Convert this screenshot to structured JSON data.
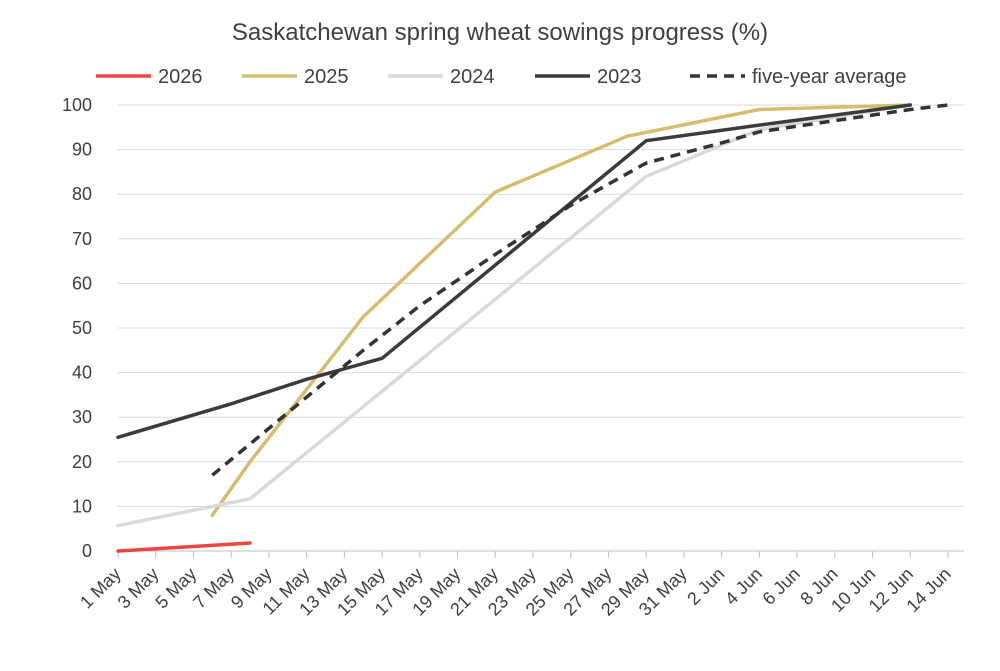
{
  "chart_data": {
    "type": "line",
    "title": "Saskatchewan spring wheat sowings progress (%)",
    "xlabel": "",
    "ylabel": "",
    "ylim": [
      0,
      100
    ],
    "yticks": [
      0,
      10,
      20,
      30,
      40,
      50,
      60,
      70,
      80,
      90,
      100
    ],
    "xticks": [
      "1 May",
      "3 May",
      "5 May",
      "7 May",
      "9 May",
      "11 May",
      "13 May",
      "15 May",
      "17 May",
      "19 May",
      "21 May",
      "23 May",
      "25 May",
      "27 May",
      "29 May",
      "31 May",
      "2 Jun",
      "4 Jun",
      "6 Jun",
      "8 Jun",
      "10 Jun",
      "12 Jun",
      "14 Jun"
    ],
    "grid": true,
    "legend_position": "top",
    "series": [
      {
        "name": "2026",
        "color": "#e8473f",
        "dash": false,
        "points": [
          [
            "1 May",
            0
          ],
          [
            "5 May",
            1
          ],
          [
            "8 May",
            1.8
          ]
        ]
      },
      {
        "name": "2025",
        "color": "#d6bd6e",
        "dash": false,
        "points": [
          [
            "6 May",
            8
          ],
          [
            "8 May",
            20
          ],
          [
            "14 May",
            52.5
          ],
          [
            "21 May",
            80.5
          ],
          [
            "28 May",
            93
          ],
          [
            "4 Jun",
            99
          ],
          [
            "12 Jun",
            100
          ]
        ]
      },
      {
        "name": "2024",
        "color": "#d9d9d9",
        "dash": false,
        "points": [
          [
            "1 May",
            5.7
          ],
          [
            "8 May",
            11.7
          ],
          [
            "29 May",
            84
          ],
          [
            "4 Jun",
            94.5
          ],
          [
            "12 Jun",
            100
          ]
        ]
      },
      {
        "name": "2023",
        "color": "#3b3b3b",
        "dash": false,
        "points": [
          [
            "1 May",
            25.5
          ],
          [
            "7 May",
            33
          ],
          [
            "11 May",
            38.5
          ],
          [
            "15 May",
            43.2
          ],
          [
            "29 May",
            92
          ],
          [
            "4 Jun",
            95.5
          ],
          [
            "12 Jun",
            100
          ]
        ]
      },
      {
        "name": "five-year average",
        "color": "#333333",
        "dash": true,
        "points": [
          [
            "6 May",
            17
          ],
          [
            "8 May",
            24
          ],
          [
            "12 May",
            38
          ],
          [
            "14 May",
            45
          ],
          [
            "17 May",
            55
          ],
          [
            "21 May",
            66.5
          ],
          [
            "25 May",
            77.5
          ],
          [
            "29 May",
            87
          ],
          [
            "2 Jun",
            91.5
          ],
          [
            "4 Jun",
            94
          ],
          [
            "12 Jun",
            99
          ],
          [
            "14 Jun",
            100
          ]
        ]
      }
    ]
  }
}
